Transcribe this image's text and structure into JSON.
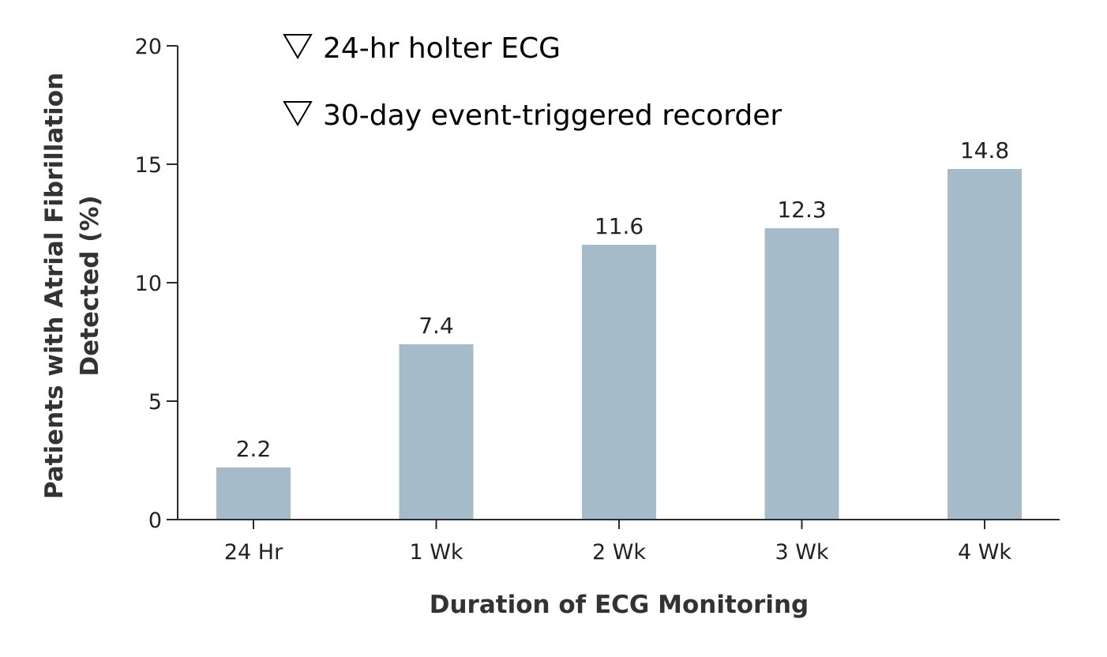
{
  "chart_data": {
    "type": "bar",
    "categories": [
      "24 Hr",
      "1 Wk",
      "2 Wk",
      "3 Wk",
      "4 Wk"
    ],
    "values": [
      2.2,
      7.4,
      11.6,
      12.3,
      14.8
    ],
    "data_labels": [
      "2.2",
      "7.4",
      "11.6",
      "12.3",
      "14.8"
    ],
    "xlabel": "Duration of ECG Monitoring",
    "ylabel_line1": "Patients with Atrial Fibrillation",
    "ylabel_line2": "Detected (%)",
    "ylim": [
      0,
      20
    ],
    "yticks": [
      0,
      5,
      10,
      15,
      20
    ],
    "ytick_labels": [
      "0",
      "5",
      "10",
      "15",
      "20"
    ],
    "bar_color": "#a6bbc9",
    "grid": false,
    "legend_position": "top-left",
    "legend": [
      {
        "symbol": "triangle-down-outline",
        "label": "24-hr holter ECG"
      },
      {
        "symbol": "triangle-down-outline",
        "label": "30-day event-triggered recorder"
      }
    ]
  }
}
